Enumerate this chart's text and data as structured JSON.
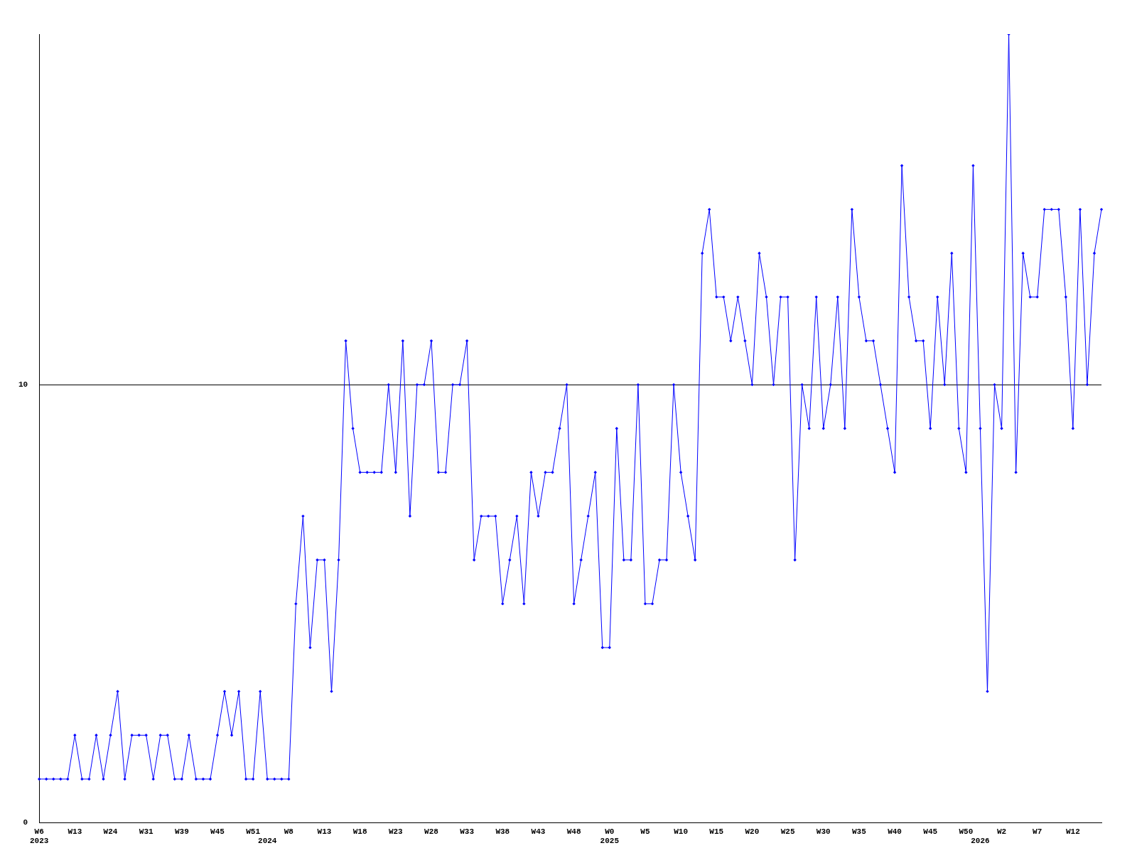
{
  "chart_data": {
    "type": "line",
    "categories": [
      "W6\n2023",
      null,
      null,
      null,
      null,
      "W13",
      null,
      null,
      null,
      null,
      "W24",
      null,
      null,
      null,
      null,
      "W31",
      null,
      null,
      null,
      null,
      "W39",
      null,
      null,
      null,
      null,
      "W45",
      null,
      null,
      null,
      null,
      "W51",
      null,
      "\n2024",
      null,
      null,
      "W8",
      null,
      null,
      null,
      null,
      "W13",
      null,
      null,
      null,
      null,
      "W18",
      null,
      null,
      null,
      null,
      "W23",
      null,
      null,
      null,
      null,
      "W28",
      null,
      null,
      null,
      null,
      "W33",
      null,
      null,
      null,
      null,
      "W38",
      null,
      null,
      null,
      null,
      "W43",
      null,
      null,
      null,
      null,
      "W48",
      null,
      null,
      null,
      null,
      "W0\n2025",
      null,
      null,
      null,
      null,
      "W5",
      null,
      null,
      null,
      null,
      "W10",
      null,
      null,
      null,
      null,
      "W15",
      null,
      null,
      null,
      null,
      "W20",
      null,
      null,
      null,
      null,
      "W25",
      null,
      null,
      null,
      null,
      "W30",
      null,
      null,
      null,
      null,
      "W35",
      null,
      null,
      null,
      null,
      "W40",
      null,
      null,
      null,
      null,
      "W45",
      null,
      null,
      null,
      null,
      "W50",
      null,
      "\n2026",
      null,
      null,
      "W2",
      null,
      null,
      null,
      null,
      "W7",
      null,
      null,
      null,
      null,
      "W12",
      null,
      null,
      null,
      null
    ],
    "series": [
      {
        "color": "#0000ff",
        "values": [
          1,
          1,
          1,
          1,
          1,
          2,
          1,
          1,
          2,
          1,
          2,
          3,
          1,
          2,
          2,
          2,
          1,
          2,
          2,
          1,
          1,
          2,
          1,
          1,
          1,
          2,
          3,
          2,
          3,
          1,
          1,
          3,
          1,
          1,
          1,
          1,
          5,
          7,
          4,
          6,
          6,
          3,
          6,
          11,
          9,
          8,
          8,
          8,
          8,
          10,
          8,
          11,
          7,
          10,
          10,
          11,
          8,
          8,
          10,
          10,
          11,
          6,
          7,
          7,
          7,
          5,
          6,
          7,
          5,
          8,
          7,
          8,
          8,
          9,
          10,
          5,
          6,
          7,
          8,
          4,
          4,
          9,
          6,
          6,
          10,
          5,
          5,
          6,
          6,
          10,
          8,
          7,
          6,
          13,
          14,
          12,
          12,
          11,
          12,
          11,
          10,
          13,
          12,
          10,
          12,
          12,
          6,
          10,
          9,
          12,
          9,
          10,
          12,
          9,
          14,
          12,
          11,
          11,
          10,
          9,
          8,
          15,
          12,
          11,
          11,
          9,
          12,
          10,
          13,
          9,
          8,
          15,
          9,
          3,
          10,
          9,
          18,
          8,
          13,
          12,
          12,
          14,
          14,
          14,
          12,
          9,
          14,
          10,
          13,
          14
        ]
      }
    ],
    "ylim": [
      0,
      18
    ],
    "yticks": [
      0,
      10
    ],
    "grid": "y",
    "marker": "diamond",
    "line_style": "solid",
    "legend": false
  }
}
